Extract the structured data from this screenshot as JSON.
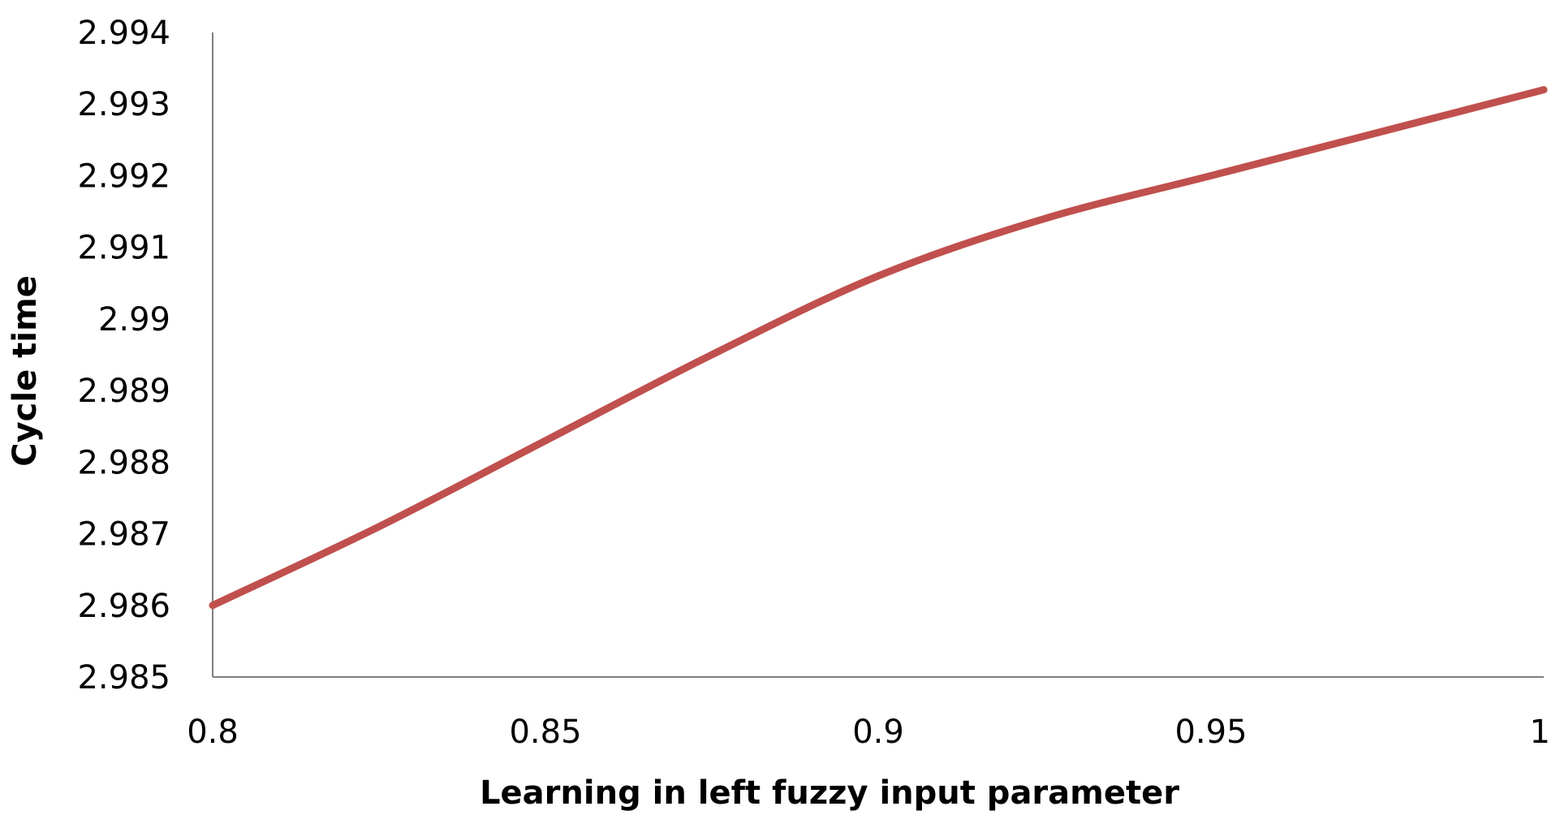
{
  "chart_data": {
    "type": "line",
    "title": "",
    "xlabel": "Learning in left fuzzy input parameter",
    "ylabel": "Cycle time",
    "xlim": [
      0.8,
      1.0
    ],
    "ylim": [
      2.985,
      2.994
    ],
    "x_ticks": [
      0.8,
      0.85,
      0.9,
      0.95,
      1.0
    ],
    "x_tick_labels": [
      "0.8",
      "0.85",
      "0.9",
      "0.95",
      "1"
    ],
    "y_ticks": [
      2.985,
      2.986,
      2.987,
      2.988,
      2.989,
      2.99,
      2.991,
      2.992,
      2.993,
      2.994
    ],
    "y_tick_labels": [
      "2.985",
      "2.986",
      "2.987",
      "2.988",
      "2.989",
      "2.99",
      "2.991",
      "2.992",
      "2.993",
      "2.994"
    ],
    "grid": false,
    "legend": "none",
    "series": [
      {
        "color": "#c0504d",
        "x": [
          0.8,
          0.825,
          0.85,
          0.875,
          0.9,
          0.925,
          0.95,
          0.975,
          1.0
        ],
        "y": [
          2.986,
          2.9871,
          2.9883,
          2.9895,
          2.9906,
          2.9914,
          2.992,
          2.9926,
          2.9932
        ]
      }
    ]
  }
}
